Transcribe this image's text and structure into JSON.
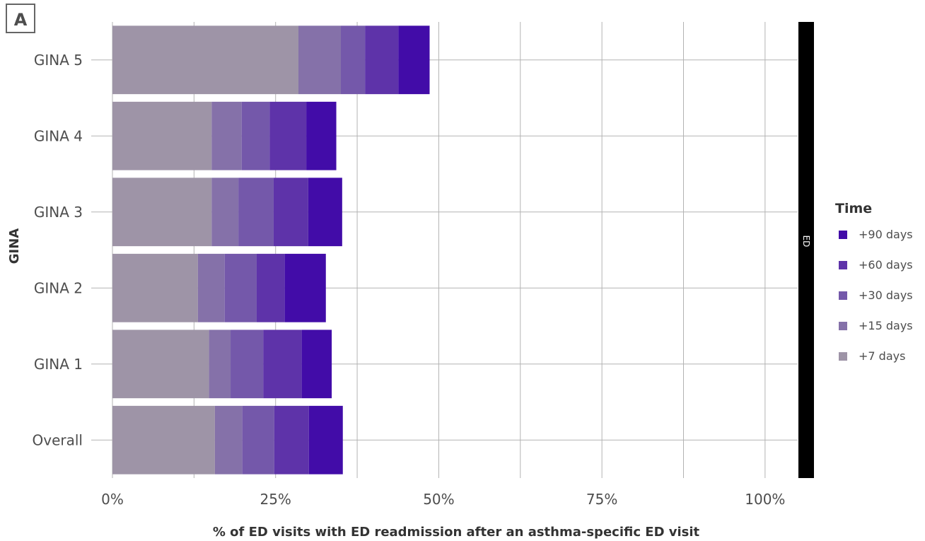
{
  "panel_label": "A",
  "chart_data": {
    "type": "bar",
    "orientation": "horizontal",
    "stacked": true,
    "categories": [
      "GINA 5",
      "GINA 4",
      "GINA 3",
      "GINA 2",
      "GINA 1",
      "Overall"
    ],
    "series": [
      {
        "name": "+7 days",
        "color": "#9e94a7",
        "values": [
          28.5,
          15.2,
          15.2,
          13.1,
          14.8,
          15.7
        ]
      },
      {
        "name": "+15 days",
        "color": "#8571a9",
        "values": [
          6.5,
          4.6,
          4.1,
          4.1,
          3.3,
          4.2
        ]
      },
      {
        "name": "+30 days",
        "color": "#7458aa",
        "values": [
          3.7,
          4.3,
          5.4,
          4.9,
          5.0,
          4.9
        ]
      },
      {
        "name": "+60 days",
        "color": "#5e33a9",
        "values": [
          5.1,
          5.6,
          5.3,
          4.3,
          5.9,
          5.3
        ]
      },
      {
        "name": "+90 days",
        "color": "#420ca8",
        "values": [
          4.8,
          4.6,
          5.2,
          6.3,
          4.6,
          5.2
        ]
      }
    ],
    "xlabel": "% of ED visits with ED readmission after an asthma-specific ED visit",
    "ylabel": "GINA",
    "xlim": [
      0,
      105
    ],
    "xticks": [
      0,
      25,
      50,
      75,
      100
    ],
    "xtick_labels": [
      "0%",
      "25%",
      "50%",
      "75%",
      "100%"
    ],
    "facet_label": "ED",
    "legend_title": "Time",
    "legend_order": [
      "+90 days",
      "+60 days",
      "+30 days",
      "+15 days",
      "+7 days"
    ],
    "legend_position": "right",
    "grid": true
  }
}
